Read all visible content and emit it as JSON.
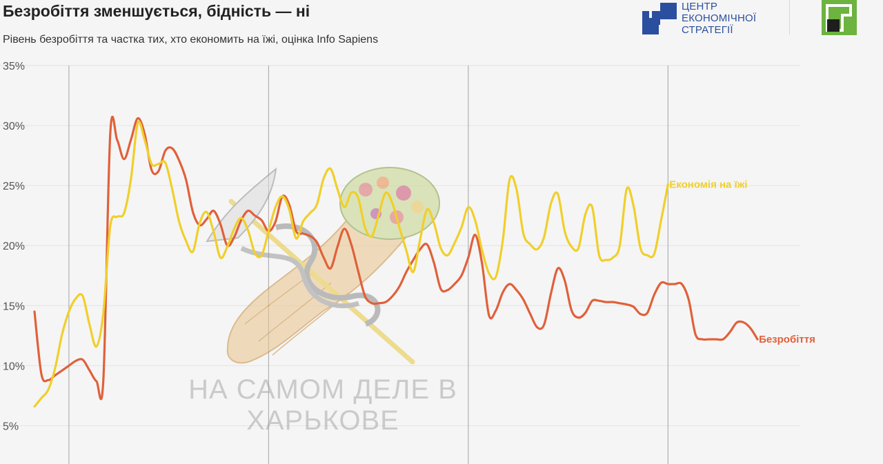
{
  "header": {
    "title": "Безробіття зменшується, бідність — ні",
    "subtitle": "Рівень безробіття та частка тих, хто економить на їжі, оцінка Info Sapiens"
  },
  "logos": {
    "ces": {
      "lines": [
        "ЦЕНТР",
        "ЕКОНОМІЧНОЇ",
        "СТРАТЕГІЇ"
      ],
      "color": "#2a4f9e"
    },
    "bank": {
      "color": "#6cb33f"
    }
  },
  "watermark": {
    "lines": [
      "НА САМОМ ДЕЛЕ В",
      "ХАРЬКОВЕ"
    ]
  },
  "chart_data": {
    "type": "line",
    "title": "Безробіття зменшується, бідність — ні",
    "subtitle": "Рівень безробіття та частка тих, хто економить на їжі, оцінка Info Sapiens",
    "ylim": [
      2.5,
      35
    ],
    "yticks": [
      35,
      30,
      25,
      20,
      15,
      10,
      5
    ],
    "ytick_labels": [
      "35%",
      "30%",
      "25%",
      "20%",
      "15%",
      "10%",
      "5%"
    ],
    "grid": true,
    "x_index_range": [
      0,
      109
    ],
    "vertical_gridlines_at": [
      5,
      34,
      63,
      92
    ],
    "series": [
      {
        "name": "Безробіття",
        "color": "#e0603a",
        "values": [
          14.5,
          9.3,
          8.8,
          9.2,
          9.6,
          10.0,
          10.4,
          10.5,
          9.6,
          8.7,
          8.8,
          29.3,
          28.8,
          27.2,
          28.8,
          30.6,
          29.3,
          26.3,
          26.2,
          27.9,
          28.1,
          27.1,
          25.5,
          22.8,
          21.7,
          22.2,
          22.9,
          21.8,
          20.0,
          20.7,
          22.1,
          22.9,
          22.5,
          22.1,
          21.2,
          22.0,
          24.1,
          23.4,
          21.2,
          21.0,
          20.8,
          20.3,
          19.0,
          18.1,
          19.9,
          21.4,
          20.1,
          17.9,
          15.8,
          15.2,
          15.2,
          15.3,
          15.8,
          16.6,
          17.8,
          18.8,
          19.7,
          20.1,
          18.6,
          16.4,
          16.3,
          16.8,
          17.5,
          19.0,
          20.9,
          18.5,
          14.2,
          14.6,
          16.1,
          16.8,
          16.3,
          15.5,
          14.3,
          13.2,
          13.4,
          16.0,
          18.1,
          17.1,
          14.6,
          14.0,
          14.4,
          15.4,
          15.4,
          15.3,
          15.3,
          15.2,
          15.1,
          14.9,
          14.3,
          14.4,
          15.9,
          16.9,
          16.8,
          16.8,
          16.8,
          15.5,
          12.6,
          12.2,
          12.2,
          12.2,
          12.2,
          12.8,
          13.6,
          13.6,
          13.1,
          12.2
        ]
      },
      {
        "name": "Економія на їжі",
        "color": "#f0cf2a",
        "values": [
          6.6,
          7.3,
          8.0,
          9.8,
          12.6,
          14.5,
          15.6,
          15.8,
          13.4,
          11.6,
          14.4,
          21.6,
          22.4,
          22.7,
          25.5,
          30.2,
          28.8,
          26.8,
          26.8,
          26.9,
          24.7,
          22.0,
          20.4,
          19.5,
          21.9,
          22.8,
          21.2,
          19.0,
          19.9,
          21.4,
          22.3,
          21.3,
          19.4,
          19.2,
          21.2,
          23.2,
          24.1,
          23.0,
          20.6,
          22.0,
          22.7,
          23.4,
          25.6,
          26.4,
          24.7,
          23.2,
          24.4,
          24.0,
          21.5,
          20.8,
          22.6,
          24.4,
          23.5,
          21.5,
          19.6,
          17.8,
          20.5,
          23.0,
          21.9,
          19.8,
          19.2,
          20.2,
          21.5,
          23.2,
          22.1,
          19.6,
          17.7,
          17.4,
          20.4,
          25.5,
          24.7,
          21.0,
          20.1,
          19.7,
          20.7,
          23.5,
          24.3,
          21.2,
          19.9,
          19.8,
          22.6,
          23.2,
          19.2,
          18.8,
          19.0,
          20.0,
          24.7,
          23.3,
          19.8,
          19.2,
          19.3,
          22.1,
          25.1
        ]
      }
    ]
  }
}
